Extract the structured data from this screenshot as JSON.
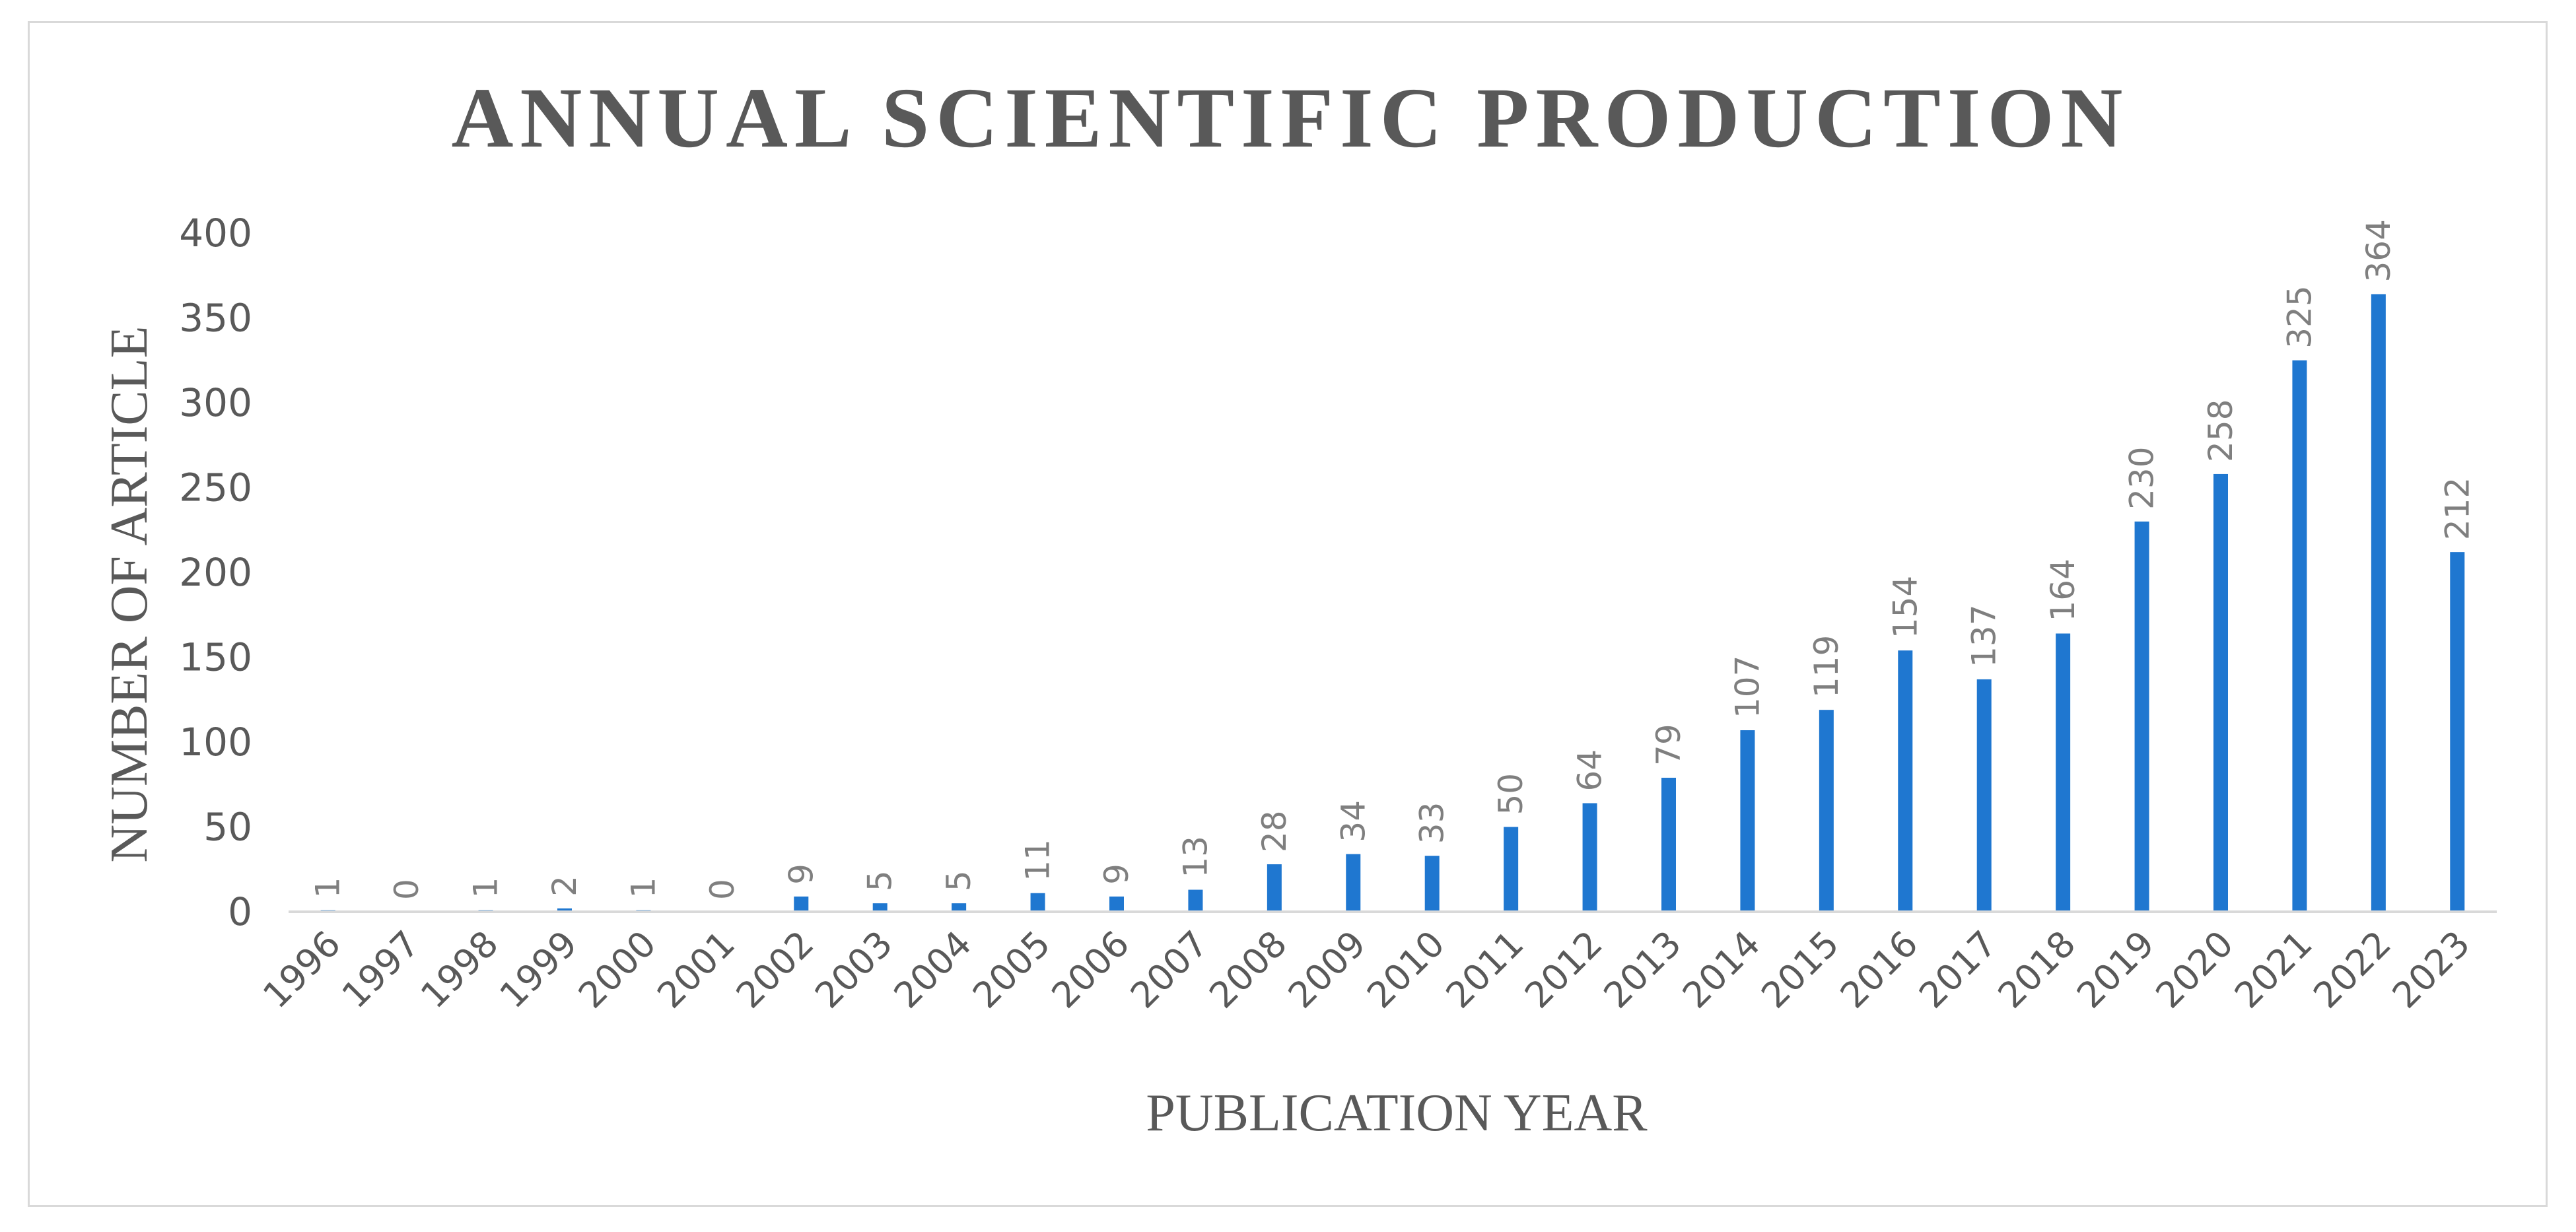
{
  "chart_data": {
    "type": "bar",
    "title": "ANNUAL SCIENTIFIC PRODUCTION",
    "xlabel": "PUBLICATION YEAR",
    "ylabel": "NUMBER OF ARTICLE",
    "ylim": [
      0,
      400
    ],
    "yticks": [
      0,
      50,
      100,
      150,
      200,
      250,
      300,
      350,
      400
    ],
    "grid": false,
    "legend": "none",
    "bar_color": "#1f77d0",
    "categories": [
      "1996",
      "1997",
      "1998",
      "1999",
      "2000",
      "2001",
      "2002",
      "2003",
      "2004",
      "2005",
      "2006",
      "2007",
      "2008",
      "2009",
      "2010",
      "2011",
      "2012",
      "2013",
      "2014",
      "2015",
      "2016",
      "2017",
      "2018",
      "2019",
      "2020",
      "2021",
      "2022",
      "2023"
    ],
    "values": [
      1,
      0,
      1,
      2,
      1,
      0,
      9,
      5,
      5,
      11,
      9,
      13,
      28,
      34,
      33,
      50,
      64,
      79,
      107,
      119,
      154,
      137,
      164,
      230,
      258,
      325,
      364,
      212
    ]
  }
}
